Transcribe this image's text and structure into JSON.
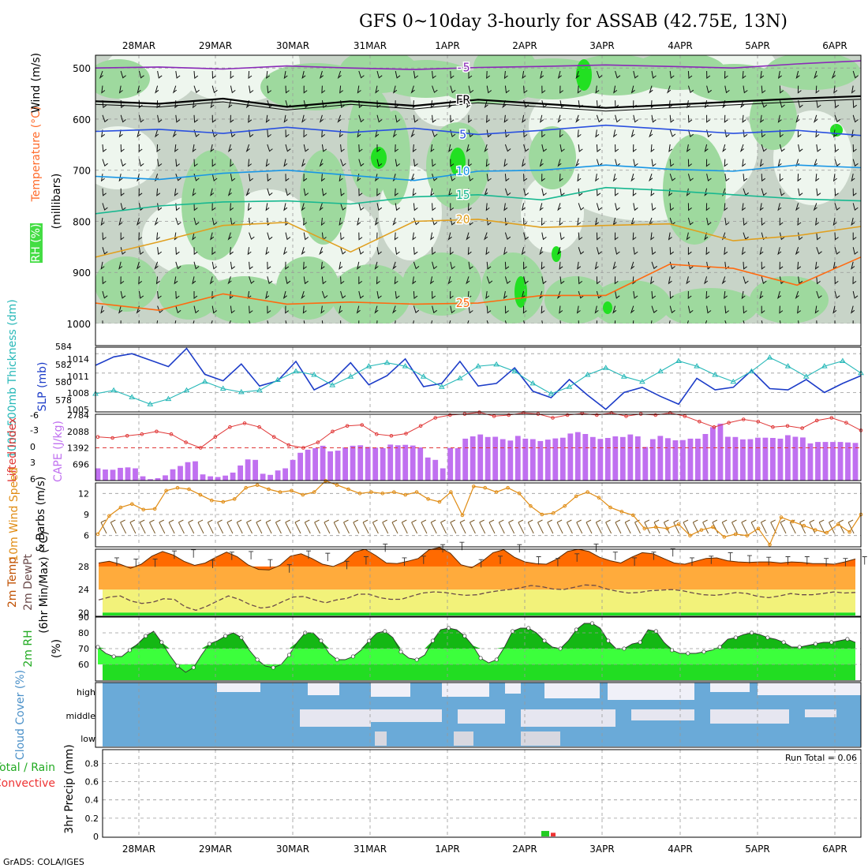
{
  "title": "GFS 0~10day 3-hourly for ASSAB (42.75E, 13N)",
  "credit": "GrADS: COLA/IGES",
  "dates": [
    "28MAR",
    "29MAR",
    "30MAR",
    "31MAR",
    "1APR",
    "2APR",
    "3APR",
    "4APR",
    "5APR",
    "6APR"
  ],
  "colors": {
    "rh_dark": "#5ad35a",
    "rh_mid": "#9ed99e",
    "rh_light": "#c8d4c8",
    "rh_pale": "#eef6ee",
    "rh_bright": "#22e022",
    "slp": "#1c3cc8",
    "thick": "#27b8b8",
    "lifted": "#e03838",
    "cape": "#c070f0",
    "wind": "#e08c14",
    "temp": "#ff6a00",
    "temp_fill": "#ffab3c",
    "dew_fill": "#f2f27a",
    "rh2m_dark": "#14b814",
    "rh2m": "#3cff3c",
    "cloud": "#6aaad8",
    "cloud_clear": "#f0f0f8",
    "precip_total": "#22cc22",
    "precip_conv": "#ee3333"
  },
  "panels": [
    {
      "id": "upper",
      "labels": [
        "RH (%)",
        "Temperature (°C)",
        "Wind (m/s)"
      ],
      "axis_title": "(millibars)"
    },
    {
      "id": "slp_thick",
      "labels": [
        "1000-500mb Thickness (dm)",
        "SLP (mb)"
      ]
    },
    {
      "id": "cape_li",
      "labels": [
        "Lifted Index",
        "CAPE (J/kg)"
      ]
    },
    {
      "id": "wind10",
      "labels": [
        "10m Wind Speed",
        "& Barbs (m/s)"
      ]
    },
    {
      "id": "temp2m",
      "labels": [
        "2m Temp",
        "2m DewPt",
        "(6hr Min/Max) (°C)"
      ]
    },
    {
      "id": "rh2m",
      "labels": [
        "2m RH",
        "(%)"
      ]
    },
    {
      "id": "cloud",
      "labels": [
        "Cloud Cover (%)"
      ],
      "layers": [
        "high",
        "middle",
        "low"
      ]
    },
    {
      "id": "precip",
      "labels": [
        "Total / Rain",
        "Convective",
        "3hr Precip (mm)"
      ],
      "run_total": "Run Total = 0.06"
    }
  ],
  "chart_data": [
    {
      "type": "contour",
      "title": "RH / Temperature / Wind",
      "ylabel": "millibars",
      "y": [
        1000,
        900,
        800,
        700,
        600,
        500
      ],
      "ylim": [
        1000,
        475
      ],
      "temperature_contours": [
        {
          "label": "-5",
          "color": "#8a2ab8",
          "p": [
            500,
            498,
            502,
            496,
            500,
            503,
            499,
            497,
            494,
            497,
            500,
            492,
            486
          ]
        },
        {
          "label": "FR",
          "color": "#000000",
          "p": [
            565,
            570,
            560,
            576,
            565,
            574,
            562,
            570,
            578,
            572,
            566,
            560,
            555
          ]
        },
        {
          "label": "5",
          "color": "#2a50e0",
          "p": [
            624,
            620,
            628,
            616,
            626,
            618,
            630,
            622,
            612,
            620,
            628,
            622,
            632
          ]
        },
        {
          "label": "10",
          "color": "#1896e6",
          "p": [
            712,
            718,
            706,
            700,
            710,
            720,
            702,
            700,
            690,
            698,
            702,
            690,
            695
          ]
        },
        {
          "label": "15",
          "color": "#18b890",
          "p": [
            785,
            770,
            762,
            760,
            766,
            752,
            748,
            758,
            734,
            740,
            748,
            756,
            760
          ]
        },
        {
          "label": "20",
          "color": "#e0a020",
          "p": [
            870,
            840,
            808,
            802,
            860,
            800,
            796,
            812,
            808,
            805,
            838,
            828,
            810
          ]
        },
        {
          "label": "25",
          "color": "#ff6a10",
          "p": [
            960,
            974,
            942,
            962,
            958,
            962,
            960,
            945,
            945,
            884,
            892,
            925,
            870
          ]
        }
      ]
    },
    {
      "type": "line",
      "title": "SLP / Thickness",
      "ylabel_left": "1000-500mb Thickness (dm)",
      "ylabel_right": "SLP (mb)",
      "y_left_ticks": [
        "584",
        "582",
        "580",
        "578"
      ],
      "y_right_ticks": [
        "1014",
        "1011",
        "1008",
        "1005"
      ],
      "series": [
        {
          "name": "SLP (mb)",
          "values": [
            1012.2,
            1013.5,
            1014,
            1013,
            1012,
            1014.8,
            1010.8,
            1009.8,
            1012.4,
            1009,
            1009.8,
            1012.8,
            1008.4,
            1009.8,
            1012.6,
            1009.2,
            1010.6,
            1013.2,
            1008.9,
            1009.4,
            1012.8,
            1009.0,
            1009.4,
            1011.8,
            1008.2,
            1007.2,
            1010.0,
            1007.6,
            1005.4,
            1008.0,
            1008.8,
            1007.4,
            1006.2,
            1010.2,
            1008.4,
            1008.8,
            1011.4,
            1008.6,
            1008.4,
            1010.0,
            1008.0,
            1009.4,
            1010.6
          ]
        },
        {
          "name": "Thickness (dm)",
          "values": [
            578.6,
            579.0,
            578.2,
            577.4,
            578.0,
            579.0,
            580.0,
            579.2,
            578.8,
            579.0,
            580.2,
            581.2,
            580.8,
            579.6,
            580.6,
            581.8,
            582.2,
            581.8,
            580.6,
            579.4,
            580.4,
            581.8,
            582.0,
            581.2,
            579.8,
            578.6,
            579.4,
            580.8,
            581.6,
            580.6,
            580.0,
            581.2,
            582.4,
            581.8,
            580.8,
            580.0,
            581.2,
            582.8,
            581.8,
            580.6,
            581.8,
            582.4,
            581.0
          ]
        }
      ]
    },
    {
      "type": "bar",
      "title": "CAPE / Lifted Index",
      "ylabel": "CAPE (J/kg)",
      "y_ticks": [
        696,
        1392,
        2088,
        2784
      ],
      "cape_values": [
        520,
        470,
        460,
        540,
        560,
        520,
        180,
        60,
        100,
        220,
        480,
        620,
        780,
        820,
        260,
        180,
        150,
        210,
        340,
        640,
        900,
        880,
        290,
        240,
        430,
        520,
        880,
        1180,
        1310,
        1380,
        1480,
        1240,
        1270,
        1410,
        1480,
        1500,
        1430,
        1400,
        1380,
        1530,
        1500,
        1520,
        1490,
        1410,
        980,
        880,
        520,
        1390,
        1380,
        1780,
        1880,
        1960,
        1850,
        1860,
        1760,
        1700,
        1900,
        1780,
        1760,
        1680,
        1740,
        1790,
        1820,
        2000,
        2060,
        1980,
        1850,
        1770,
        1810,
        1880,
        1850,
        1960,
        1880,
        1430,
        1760,
        1900,
        1800,
        1710,
        1720,
        1780,
        1780,
        1980,
        2270,
        2420,
        1860,
        1850,
        1750,
        1760,
        1820,
        1820,
        1810,
        1780,
        1930,
        1860,
        1830,
        1580,
        1640,
        1640,
        1640,
        1640,
        1620,
        1600
      ]
    },
    {
      "type": "line",
      "title": "Lifted Index",
      "ylabel": "Lifted Index",
      "y_ticks": [
        "-3",
        "0",
        "3",
        "6"
      ],
      "ylim": [
        -6,
        6
      ],
      "values": [
        -2.0,
        -1.8,
        -2.2,
        -2.5,
        -3.0,
        -2.5,
        -1.0,
        0.0,
        -2.0,
        -3.8,
        -4.5,
        -3.8,
        -2.0,
        -0.5,
        0.0,
        -1.0,
        -3.0,
        -4.0,
        -4.2,
        -2.5,
        -2.2,
        -2.6,
        -4.0,
        -5.5,
        -6.0,
        -6.2,
        -6.5,
        -5.8,
        -6.0,
        -6.4,
        -6.2,
        -5.5,
        -6.0,
        -6.3,
        -6.0,
        -6.4,
        -5.8,
        -6.2,
        -6.0,
        -6.4,
        -5.8,
        -4.8,
        -3.8,
        -4.6,
        -5.2,
        -4.8,
        -3.8,
        -4.0,
        -3.6,
        -5.0,
        -5.5,
        -4.6,
        -3.2
      ]
    },
    {
      "type": "line",
      "title": "10m Wind Speed",
      "ylabel": "m/s",
      "y_ticks": [
        "12",
        "9",
        "6"
      ],
      "ylim": [
        4.5,
        13.5
      ],
      "values": [
        6.2,
        8.8,
        10.0,
        10.5,
        9.7,
        9.8,
        12.4,
        12.8,
        12.6,
        11.8,
        11.0,
        10.8,
        11.2,
        12.8,
        13.2,
        12.6,
        12.2,
        12.4,
        11.8,
        12.2,
        13.8,
        13.2,
        12.6,
        12.0,
        12.2,
        12.0,
        12.2,
        11.8,
        12.2,
        11.2,
        10.8,
        12.2,
        8.9,
        13.0,
        12.8,
        12.2,
        12.8,
        12.0,
        10.2,
        9.0,
        9.2,
        10.2,
        11.6,
        12.2,
        11.4,
        10.0,
        9.4,
        8.9,
        7.0,
        7.2,
        7.0,
        7.6,
        6.0,
        6.8,
        7.2,
        5.8,
        6.2,
        6.0,
        7.0,
        4.7,
        8.6,
        8.0,
        7.4,
        6.8,
        6.4,
        7.6,
        6.5,
        9.0
      ]
    },
    {
      "type": "area",
      "title": "2m Temp / DewPt",
      "ylabel": "°C",
      "y_ticks": [
        "28",
        "24",
        "20"
      ],
      "ylim": [
        19.5,
        31
      ],
      "temp": [
        28.6,
        28.9,
        28.4,
        27.7,
        28.4,
        29.8,
        30.6,
        30.0,
        28.9,
        28.2,
        28.6,
        29.6,
        30.5,
        29.7,
        28.3,
        27.5,
        27.4,
        28.2,
        29.8,
        30.2,
        29.4,
        28.4,
        28.0,
        28.8,
        30.5,
        31.0,
        29.9,
        28.6,
        28.5,
        28.9,
        29.4,
        30.9,
        31.3,
        30.3,
        28.3,
        27.8,
        28.9,
        30.4,
        30.9,
        29.6,
        28.8,
        28.5,
        28.4,
        29.3,
        30.6,
        31.0,
        30.6,
        29.6,
        29.0,
        28.6,
        29.6,
        30.4,
        30.2,
        29.4,
        28.6,
        28.4,
        28.9,
        29.4,
        29.5,
        29.0,
        28.8,
        28.7,
        28.8,
        28.8,
        28.6,
        28.8,
        28.7,
        28.5,
        28.5,
        28.4,
        28.8,
        29.3
      ],
      "dew": [
        22.2,
        22.7,
        22.9,
        22.0,
        21.6,
        21.8,
        22.4,
        22.3,
        21.0,
        20.4,
        21.1,
        22.0,
        22.9,
        22.3,
        21.4,
        20.8,
        21.0,
        21.9,
        22.7,
        22.8,
        22.2,
        21.7,
        22.2,
        22.5,
        23.2,
        23.2,
        22.6,
        22.3,
        22.3,
        22.9,
        23.4,
        23.6,
        23.5,
        23.2,
        23.0,
        23.1,
        23.5,
        23.8,
        24.0,
        24.3,
        24.7,
        24.5,
        24.1,
        24.0,
        24.4,
        24.8,
        24.7,
        24.1,
        23.7,
        23.4,
        23.5,
        23.8,
        23.9,
        24.0,
        23.8,
        23.4,
        23.1,
        23.0,
        23.2,
        23.5,
        23.3,
        22.8,
        22.6,
        22.9,
        23.3,
        23.1,
        23.1,
        23.3,
        23.6,
        23.4,
        23.5
      ]
    },
    {
      "type": "area",
      "title": "2m RH",
      "ylabel": "(%)",
      "y_ticks": [
        "90",
        "80",
        "70",
        "60"
      ],
      "ylim": [
        50,
        90
      ],
      "values": [
        71,
        67,
        65,
        65,
        69,
        73,
        78,
        81,
        74,
        66,
        59,
        55,
        58,
        66,
        73,
        75,
        78,
        80,
        77,
        69,
        63,
        59,
        58,
        60,
        66,
        74,
        80,
        80,
        75,
        67,
        63,
        63,
        65,
        69,
        75,
        80,
        81,
        77,
        68,
        64,
        63,
        66,
        75,
        82,
        83,
        82,
        78,
        72,
        64,
        61,
        63,
        71,
        81,
        83,
        83,
        80,
        75,
        71,
        70,
        75,
        82,
        86,
        86,
        83,
        75,
        70,
        70,
        73,
        74,
        82,
        81,
        74,
        69,
        67,
        67,
        67,
        68,
        69,
        71,
        76,
        77,
        79,
        80,
        79,
        77,
        76,
        74,
        71,
        71,
        72,
        73,
        74,
        74,
        75,
        76,
        74
      ]
    },
    {
      "type": "bar",
      "title": "Cloud Cover",
      "layers": [
        "high",
        "middle",
        "low"
      ]
    },
    {
      "type": "bar",
      "title": "3hr Precip",
      "ylabel": "3hr Precip (mm)",
      "y_ticks": [
        "0.8",
        "0.6",
        "0.4",
        "0.2",
        "0"
      ],
      "ylim": [
        0,
        0.95
      ],
      "series": [
        {
          "name": "Total / Rain",
          "values": [
            0.06
          ]
        },
        {
          "name": "Convective",
          "values": [
            0.04
          ]
        }
      ],
      "run_total": "Run Total = 0.06"
    }
  ]
}
